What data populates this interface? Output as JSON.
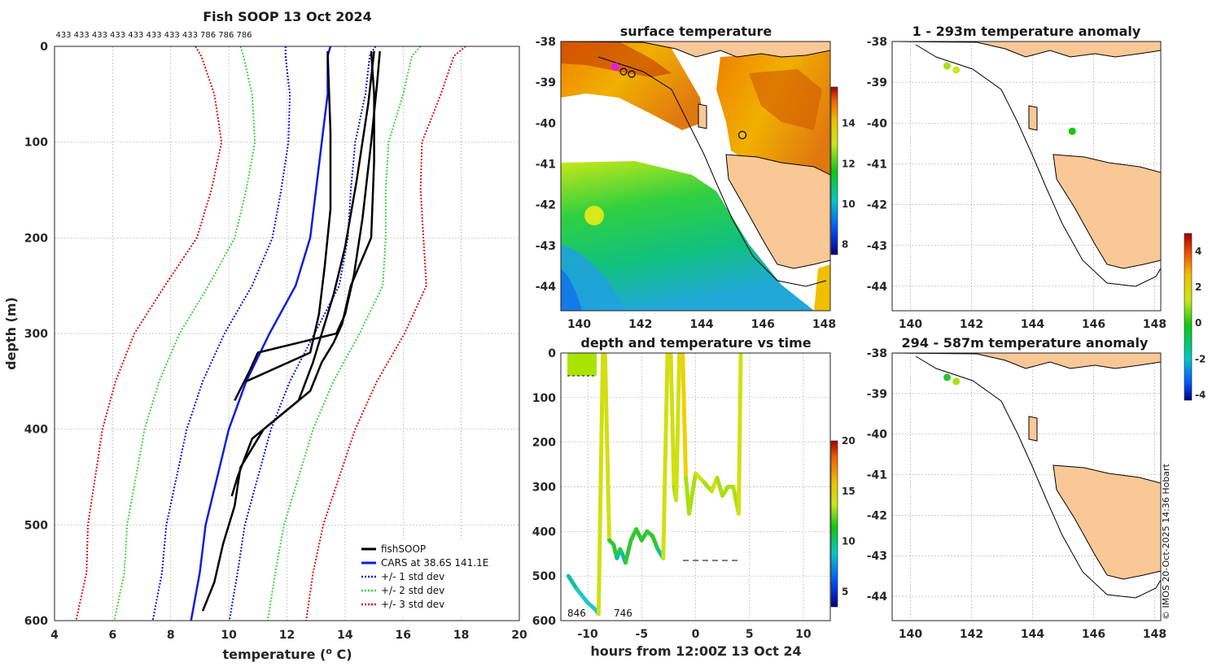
{
  "chart_data": [
    {
      "id": "profile",
      "type": "line",
      "title": "Fish SOOP 13 Oct 2024",
      "xlabel": "temperature (",
      "xlabel_sup": "o",
      "xlabel_tail": " C)",
      "ylabel": "depth (m)",
      "xlim": [
        4,
        20
      ],
      "ylim": [
        600,
        0
      ],
      "xticks": [
        "4",
        "6",
        "8",
        "10",
        "12",
        "14",
        "16",
        "18",
        "20"
      ],
      "yticks": [
        "0",
        "100",
        "200",
        "300",
        "400",
        "500",
        "600"
      ],
      "top_counts": [
        "433",
        "433",
        "433",
        "433",
        "433",
        "433",
        "433",
        "433",
        "786",
        "786",
        "786"
      ],
      "legend": [
        "fishSOOP",
        "CARS at 38.6S 141.1E",
        "+/- 1 std dev",
        "+/- 2 std dev",
        "+/- 3 std dev"
      ],
      "cars_mean": {
        "depth": [
          0,
          10,
          50,
          100,
          150,
          200,
          250,
          300,
          350,
          400,
          450,
          500,
          550,
          600
        ],
        "temp": [
          13.5,
          13.4,
          13.4,
          13.2,
          13.0,
          12.8,
          12.3,
          11.4,
          10.6,
          10.0,
          9.6,
          9.2,
          9.0,
          8.7
        ]
      },
      "std_half_width": {
        "depth": [
          0,
          10,
          50,
          100,
          150,
          200,
          250,
          300,
          350,
          400,
          450,
          500,
          550,
          600
        ],
        "sd": [
          1.55,
          1.45,
          1.3,
          1.15,
          1.2,
          1.3,
          1.5,
          1.55,
          1.5,
          1.45,
          1.4,
          1.35,
          1.3,
          1.32
        ]
      },
      "series": [
        {
          "name": "fishSOOP",
          "depth": [
            5,
            50,
            120,
            200,
            250,
            290,
            310,
            330,
            360,
            400,
            440,
            480,
            520,
            560,
            590
          ],
          "temp": [
            14.9,
            15.0,
            15.0,
            14.9,
            14.2,
            13.9,
            13.6,
            13.2,
            12.8,
            11.2,
            10.4,
            10.2,
            9.8,
            9.5,
            9.1
          ]
        },
        {
          "name": "fishSOOP",
          "depth": [
            5,
            40,
            100,
            180,
            240,
            280,
            300,
            320,
            340,
            370
          ],
          "temp": [
            15.2,
            15.1,
            14.9,
            14.6,
            14.3,
            14.0,
            13.7,
            11.0,
            10.7,
            10.2
          ]
        },
        {
          "name": "fishSOOP",
          "depth": [
            5,
            60,
            140,
            210,
            260,
            300,
            330,
            370,
            410,
            450,
            470
          ],
          "temp": [
            15.0,
            14.8,
            14.4,
            14.0,
            13.6,
            13.2,
            12.9,
            12.4,
            10.8,
            10.3,
            10.1
          ]
        },
        {
          "name": "fishSOOP",
          "depth": [
            5,
            90,
            170,
            230,
            280,
            320,
            350
          ],
          "temp": [
            13.4,
            13.5,
            13.5,
            13.3,
            13.1,
            12.8,
            10.6
          ]
        }
      ]
    },
    {
      "id": "sst",
      "type": "heatmap",
      "title": "surface temperature",
      "xlim": [
        139.4,
        148.2
      ],
      "ylim": [
        -44.6,
        -38
      ],
      "xticks": [
        "140",
        "142",
        "144",
        "146",
        "148"
      ],
      "yticks": [
        "-38",
        "-39",
        "-40",
        "-41",
        "-42",
        "-43",
        "-44"
      ],
      "colorbar": {
        "ticks": [
          "8",
          "10",
          "12",
          "14"
        ],
        "range": [
          7.5,
          15.8
        ]
      }
    },
    {
      "id": "timeseries",
      "type": "line",
      "title": "depth and temperature vs time",
      "xlabel": "hours from 12:00Z 13 Oct 24",
      "xlim": [
        -12.5,
        12.5
      ],
      "ylim": [
        600,
        0
      ],
      "xticks": [
        "-10",
        "-5",
        "0",
        "5",
        "10"
      ],
      "yticks": [
        "0",
        "100",
        "200",
        "300",
        "400",
        "500",
        "600"
      ],
      "annotations": [
        "846",
        "746"
      ],
      "colorbar": {
        "ticks": [
          "5",
          "10",
          "15",
          "20"
        ],
        "range": [
          3.5,
          20
        ]
      },
      "track": {
        "hours": [
          -11.8,
          -11.0,
          -10.0,
          -9.3,
          -9.0,
          -8.6,
          -8.4,
          -8.0,
          -7.6,
          -7.3,
          -7.0,
          -6.8,
          -6.5,
          -6.0,
          -5.5,
          -5.0,
          -4.5,
          -4.0,
          -3.5,
          -3.0,
          -2.6,
          -2.3,
          -2.0,
          -1.8,
          -1.5,
          -1.2,
          -0.9,
          -0.6,
          0.0,
          0.8,
          1.5,
          2.0,
          2.5,
          3.0,
          3.5,
          4.0,
          4.2
        ],
        "depth": [
          500,
          530,
          560,
          575,
          585,
          0,
          0,
          420,
          430,
          460,
          440,
          450,
          470,
          420,
          395,
          420,
          400,
          410,
          440,
          460,
          0,
          0,
          300,
          330,
          0,
          0,
          280,
          360,
          270,
          290,
          310,
          280,
          320,
          300,
          300,
          360,
          0
        ]
      }
    },
    {
      "id": "anom_shallow",
      "type": "scatter",
      "title": "1 - 293m temperature anomaly",
      "xlim": [
        139.4,
        148.2
      ],
      "ylim": [
        -44.6,
        -38
      ],
      "xticks": [
        "140",
        "142",
        "144",
        "146",
        "148"
      ],
      "yticks": [
        "-38",
        "-39",
        "-40",
        "-41",
        "-42",
        "-43",
        "-44"
      ],
      "points": [
        {
          "lon": 141.2,
          "lat": -38.6
        },
        {
          "lon": 141.5,
          "lat": -38.7
        },
        {
          "lon": 145.3,
          "lat": -40.2
        }
      ]
    },
    {
      "id": "anom_deep",
      "type": "scatter",
      "title": "294 - 587m temperature anomaly",
      "xlim": [
        139.4,
        148.2
      ],
      "ylim": [
        -44.6,
        -38
      ],
      "xticks": [
        "140",
        "142",
        "144",
        "146",
        "148"
      ],
      "yticks": [
        "-38",
        "-39",
        "-40",
        "-41",
        "-42",
        "-43",
        "-44"
      ],
      "points": [
        {
          "lon": 141.2,
          "lat": -38.6
        },
        {
          "lon": 141.5,
          "lat": -38.7
        }
      ],
      "colorbar": {
        "ticks": [
          "4",
          "2",
          "0",
          "-2",
          "-4"
        ],
        "range": [
          -4.3,
          5
        ]
      }
    }
  ],
  "copyright": "© IMOS 20-Oct-2025 14:36 Hobart",
  "colors": {
    "fishsoop": "#000000",
    "cars": "#0a1ee0",
    "sd1": "#1010e0",
    "sd2": "#38d838",
    "sd3": "#e01010",
    "land": "#f9c896"
  }
}
